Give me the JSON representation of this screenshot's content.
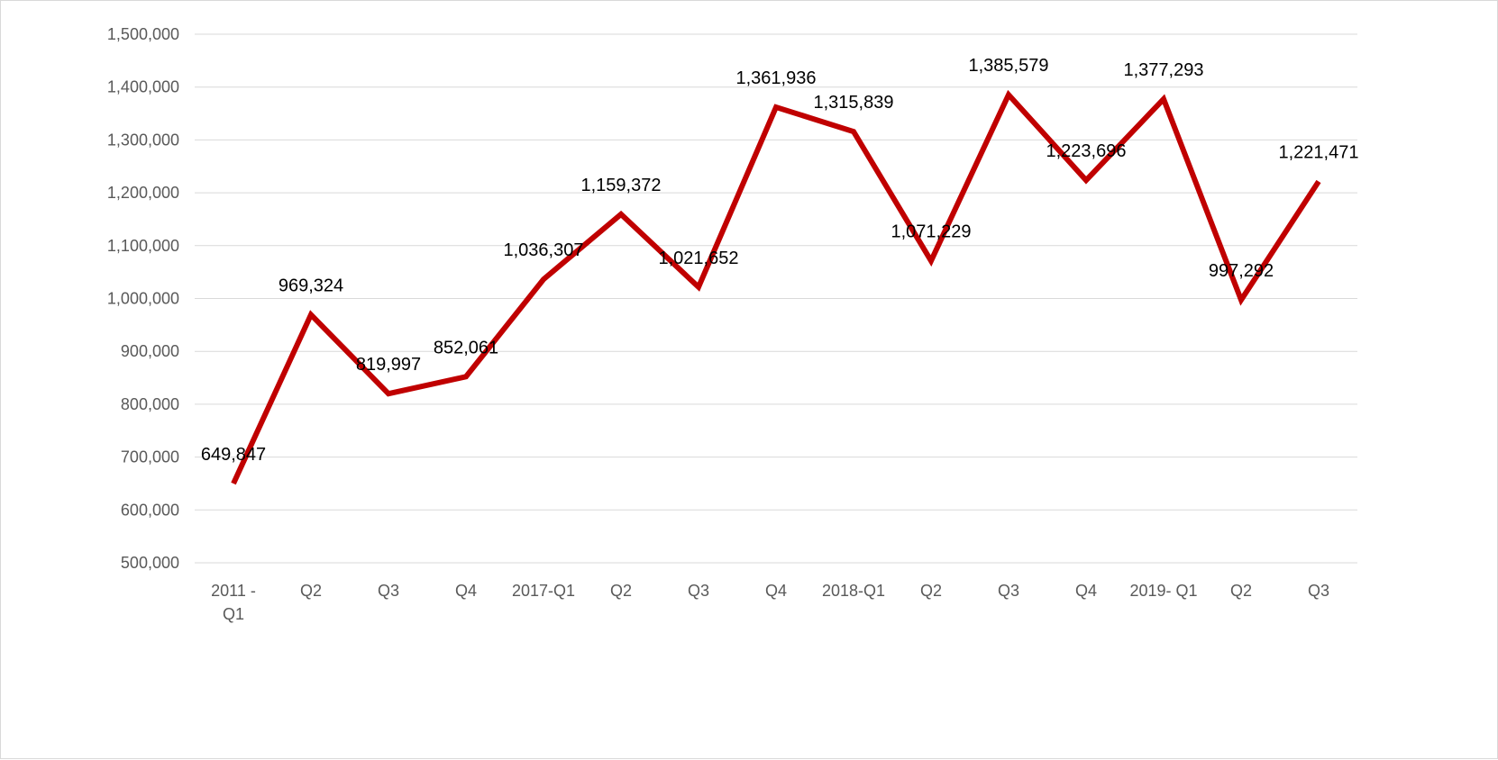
{
  "chart_data": {
    "type": "line",
    "title": "",
    "xlabel": "",
    "ylabel": "",
    "categories": [
      [
        "2011 -",
        "Q1"
      ],
      [
        "Q2"
      ],
      [
        "Q3"
      ],
      [
        "Q4"
      ],
      [
        "2017-Q1"
      ],
      [
        "Q2"
      ],
      [
        "Q3"
      ],
      [
        "Q4"
      ],
      [
        "2018-Q1"
      ],
      [
        "Q2"
      ],
      [
        "Q3"
      ],
      [
        "Q4"
      ],
      [
        "2019- Q1"
      ],
      [
        "Q2"
      ],
      [
        "Q3"
      ]
    ],
    "series": [
      {
        "color": "#c00000",
        "values": [
          649847,
          969324,
          819997,
          852061,
          1036307,
          1159372,
          1021652,
          1361936,
          1315839,
          1071229,
          1385579,
          1223696,
          1377293,
          997292,
          1221471
        ],
        "labels": [
          "649,847",
          "969,324",
          "819,997",
          "852,061",
          "1,036,307",
          "1,159,372",
          "1,021,652",
          "1,361,936",
          "1,315,839",
          "1,071,229",
          "1,385,579",
          "1,223,696",
          "1,377,293",
          "997,292",
          "1,221,471"
        ]
      }
    ],
    "ylim": [
      500000,
      1500000
    ],
    "yticks": [
      500000,
      600000,
      700000,
      800000,
      900000,
      1000000,
      1100000,
      1200000,
      1300000,
      1400000,
      1500000
    ],
    "ytick_labels": [
      "500,000",
      "600,000",
      "700,000",
      "800,000",
      "900,000",
      "1,000,000",
      "1,100,000",
      "1,200,000",
      "1,300,000",
      "1,400,000",
      "1,500,000"
    ],
    "grid": true,
    "legend": "none"
  }
}
